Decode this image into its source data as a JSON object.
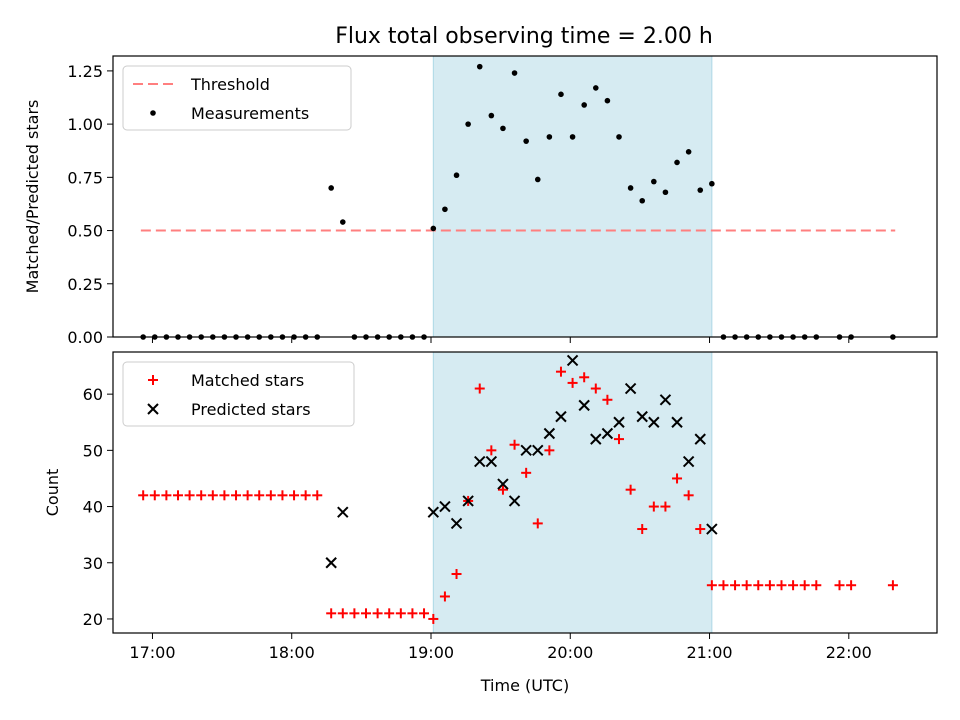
{
  "chart_data": [
    {
      "type": "scatter",
      "title": "Flux total observing time = 2.00 h",
      "xlabel": "",
      "ylabel": "Matched/Predicted stars",
      "xlim": [
        "16:43",
        "22:38"
      ],
      "ylim": [
        0,
        1.32
      ],
      "yticks": [
        0,
        0.25,
        0.5,
        0.75,
        1.0,
        1.25
      ],
      "ytick_labels": [
        "0.00",
        "0.25",
        "0.50",
        "0.75",
        "1.00",
        "1.25"
      ],
      "shaded_span": [
        "19:01",
        "21:01"
      ],
      "legend_position": "top-left",
      "legend": [
        {
          "label": "Threshold",
          "marker": "dashed-line",
          "color": "#ff7f7f"
        },
        {
          "label": "Measurements",
          "marker": "dot",
          "color": "#000000"
        }
      ],
      "threshold": {
        "x": [
          "16:55",
          "22:20"
        ],
        "y": 0.5
      },
      "measurements": [
        [
          "16:56",
          0
        ],
        [
          "17:01",
          0
        ],
        [
          "17:06",
          0
        ],
        [
          "17:11",
          0
        ],
        [
          "17:16",
          0
        ],
        [
          "17:21",
          0
        ],
        [
          "17:26",
          0
        ],
        [
          "17:31",
          0
        ],
        [
          "17:36",
          0
        ],
        [
          "17:41",
          0
        ],
        [
          "17:46",
          0
        ],
        [
          "17:51",
          0
        ],
        [
          "17:56",
          0
        ],
        [
          "18:01",
          0
        ],
        [
          "18:06",
          0
        ],
        [
          "18:11",
          0
        ],
        [
          "18:17",
          0.7
        ],
        [
          "18:22",
          0.54
        ],
        [
          "18:27",
          0
        ],
        [
          "18:32",
          0
        ],
        [
          "18:37",
          0
        ],
        [
          "18:42",
          0
        ],
        [
          "18:47",
          0
        ],
        [
          "18:52",
          0
        ],
        [
          "18:57",
          0
        ],
        [
          "19:01",
          0.51
        ],
        [
          "19:06",
          0.6
        ],
        [
          "19:11",
          0.76
        ],
        [
          "19:16",
          1.0
        ],
        [
          "19:21",
          1.27
        ],
        [
          "19:26",
          1.04
        ],
        [
          "19:31",
          0.98
        ],
        [
          "19:36",
          1.24
        ],
        [
          "19:41",
          0.92
        ],
        [
          "19:46",
          0.74
        ],
        [
          "19:51",
          0.94
        ],
        [
          "19:56",
          1.14
        ],
        [
          "20:01",
          0.94
        ],
        [
          "20:06",
          1.09
        ],
        [
          "20:11",
          1.17
        ],
        [
          "20:16",
          1.11
        ],
        [
          "20:21",
          0.94
        ],
        [
          "20:26",
          0.7
        ],
        [
          "20:31",
          0.64
        ],
        [
          "20:36",
          0.73
        ],
        [
          "20:41",
          0.68
        ],
        [
          "20:46",
          0.82
        ],
        [
          "20:51",
          0.87
        ],
        [
          "20:56",
          0.69
        ],
        [
          "21:01",
          0.72
        ],
        [
          "21:06",
          0
        ],
        [
          "21:11",
          0
        ],
        [
          "21:16",
          0
        ],
        [
          "21:21",
          0
        ],
        [
          "21:26",
          0
        ],
        [
          "21:31",
          0
        ],
        [
          "21:36",
          0
        ],
        [
          "21:41",
          0
        ],
        [
          "21:46",
          0
        ],
        [
          "21:56",
          0
        ],
        [
          "22:01",
          0
        ],
        [
          "22:19",
          0
        ]
      ]
    },
    {
      "type": "scatter",
      "title": "",
      "xlabel": "Time (UTC)",
      "ylabel": "Count",
      "xlim": [
        "16:43",
        "22:38"
      ],
      "ylim": [
        17.5,
        67.5
      ],
      "yticks": [
        20,
        30,
        40,
        50,
        60
      ],
      "xticks": [
        "17:00",
        "18:00",
        "19:00",
        "20:00",
        "21:00",
        "22:00"
      ],
      "shaded_span": [
        "19:01",
        "21:01"
      ],
      "legend_position": "top-left",
      "series": [
        {
          "name": "Matched stars",
          "marker": "plus",
          "color": "#ff0000",
          "points": [
            [
              "16:56",
              42
            ],
            [
              "17:01",
              42
            ],
            [
              "17:06",
              42
            ],
            [
              "17:11",
              42
            ],
            [
              "17:16",
              42
            ],
            [
              "17:21",
              42
            ],
            [
              "17:26",
              42
            ],
            [
              "17:31",
              42
            ],
            [
              "17:36",
              42
            ],
            [
              "17:41",
              42
            ],
            [
              "17:46",
              42
            ],
            [
              "17:51",
              42
            ],
            [
              "17:56",
              42
            ],
            [
              "18:01",
              42
            ],
            [
              "18:06",
              42
            ],
            [
              "18:11",
              42
            ],
            [
              "18:17",
              21
            ],
            [
              "18:22",
              21
            ],
            [
              "18:27",
              21
            ],
            [
              "18:32",
              21
            ],
            [
              "18:37",
              21
            ],
            [
              "18:42",
              21
            ],
            [
              "18:47",
              21
            ],
            [
              "18:52",
              21
            ],
            [
              "18:57",
              21
            ],
            [
              "19:01",
              20
            ],
            [
              "19:06",
              24
            ],
            [
              "19:11",
              28
            ],
            [
              "19:16",
              41
            ],
            [
              "19:21",
              61
            ],
            [
              "19:26",
              50
            ],
            [
              "19:31",
              43
            ],
            [
              "19:36",
              51
            ],
            [
              "19:41",
              46
            ],
            [
              "19:46",
              37
            ],
            [
              "19:51",
              50
            ],
            [
              "19:56",
              64
            ],
            [
              "20:01",
              62
            ],
            [
              "20:06",
              63
            ],
            [
              "20:11",
              61
            ],
            [
              "20:16",
              59
            ],
            [
              "20:21",
              52
            ],
            [
              "20:26",
              43
            ],
            [
              "20:31",
              36
            ],
            [
              "20:36",
              40
            ],
            [
              "20:41",
              40
            ],
            [
              "20:46",
              45
            ],
            [
              "20:51",
              42
            ],
            [
              "20:56",
              36
            ],
            [
              "21:01",
              26
            ],
            [
              "21:06",
              26
            ],
            [
              "21:11",
              26
            ],
            [
              "21:16",
              26
            ],
            [
              "21:21",
              26
            ],
            [
              "21:26",
              26
            ],
            [
              "21:31",
              26
            ],
            [
              "21:36",
              26
            ],
            [
              "21:41",
              26
            ],
            [
              "21:46",
              26
            ],
            [
              "21:56",
              26
            ],
            [
              "22:01",
              26
            ],
            [
              "22:19",
              26
            ]
          ]
        },
        {
          "name": "Predicted stars",
          "marker": "x",
          "color": "#000000",
          "points": [
            [
              "18:17",
              30
            ],
            [
              "18:22",
              39
            ],
            [
              "19:01",
              39
            ],
            [
              "19:06",
              40
            ],
            [
              "19:11",
              37
            ],
            [
              "19:16",
              41
            ],
            [
              "19:21",
              48
            ],
            [
              "19:26",
              48
            ],
            [
              "19:31",
              44
            ],
            [
              "19:36",
              41
            ],
            [
              "19:41",
              50
            ],
            [
              "19:46",
              50
            ],
            [
              "19:51",
              53
            ],
            [
              "19:56",
              56
            ],
            [
              "20:01",
              66
            ],
            [
              "20:06",
              58
            ],
            [
              "20:11",
              52
            ],
            [
              "20:16",
              53
            ],
            [
              "20:21",
              55
            ],
            [
              "20:26",
              61
            ],
            [
              "20:31",
              56
            ],
            [
              "20:36",
              55
            ],
            [
              "20:41",
              59
            ],
            [
              "20:46",
              55
            ],
            [
              "20:51",
              48
            ],
            [
              "20:56",
              52
            ],
            [
              "21:01",
              36
            ]
          ]
        }
      ]
    }
  ]
}
